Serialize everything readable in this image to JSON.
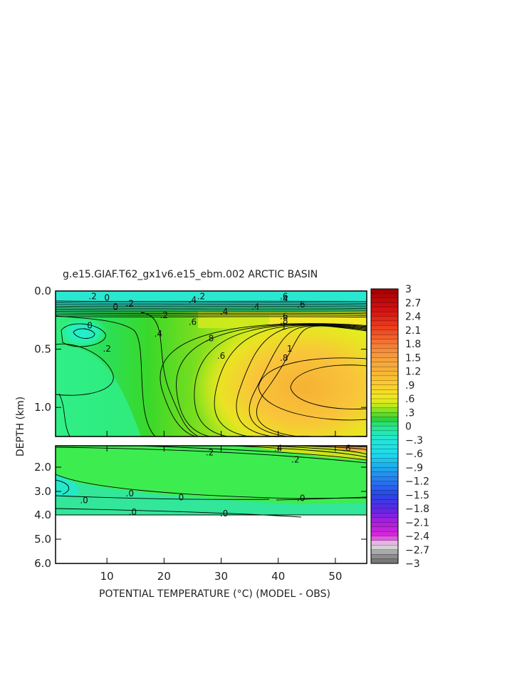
{
  "chart_data": {
    "type": "heatmap",
    "title": "g.e15.GIAF.T62_gx1v6.e15_ebm.002 ARCTIC BASIN",
    "xlabel": "POTENTIAL TEMPERATURE (°C) (MODEL - OBS)",
    "ylabel": "DEPTH (km)",
    "x_ticks": [
      "10",
      "20",
      "30",
      "40",
      "50"
    ],
    "x_tick_values": [
      10,
      20,
      30,
      40,
      50
    ],
    "xlim": [
      1,
      55.5
    ],
    "upper_panel": {
      "ylim": [
        0.0,
        1.25
      ],
      "y_ticks": [
        "0.0",
        "0.5",
        "1.0"
      ],
      "y_tick_values": [
        0.0,
        0.5,
        1.0
      ]
    },
    "lower_panel": {
      "ylim": [
        1.25,
        6.0
      ],
      "y_ticks": [
        "2.0",
        "3.0",
        "4.0",
        "5.0",
        "6.0"
      ],
      "y_tick_values": [
        2.0,
        3.0,
        4.0,
        5.0,
        6.0
      ]
    },
    "colorbar": {
      "ticks": [
        "3",
        "2.7",
        "2.4",
        "2.1",
        "1.8",
        "1.5",
        "1.2",
        ".9",
        ".6",
        ".3",
        "0",
        "-.3",
        "-.6",
        "-.9",
        "-1.2",
        "-1.5",
        "-1.8",
        "-2.1",
        "-2.4",
        "-2.7",
        "-3"
      ],
      "values": [
        3,
        2.7,
        2.4,
        2.1,
        1.8,
        1.5,
        1.2,
        0.9,
        0.6,
        0.3,
        0,
        -0.3,
        -0.6,
        -0.9,
        -1.2,
        -1.5,
        -1.8,
        -2.1,
        -2.4,
        -2.7,
        -3
      ],
      "range": [
        -3,
        3
      ]
    },
    "contour_labels_upper": [
      {
        "text": ".2",
        "x": 7.5,
        "y": 0.05
      },
      {
        "text": "0",
        "x": 10,
        "y": 0.06
      },
      {
        "text": "0",
        "x": 11.5,
        "y": 0.14
      },
      {
        "text": ".2",
        "x": 14,
        "y": 0.11
      },
      {
        "text": ".2",
        "x": 26.5,
        "y": 0.05
      },
      {
        "text": ".4",
        "x": 25,
        "y": 0.08
      },
      {
        "text": ".6",
        "x": 41,
        "y": 0.05
      },
      {
        "text": ".4",
        "x": 41,
        "y": 0.07
      },
      {
        "text": ".6",
        "x": 44,
        "y": 0.12
      },
      {
        "text": ".4",
        "x": 36,
        "y": 0.14
      },
      {
        "text": ".4",
        "x": 30.5,
        "y": 0.18
      },
      {
        "text": ".2",
        "x": 20,
        "y": 0.21
      },
      {
        "text": ".6",
        "x": 41,
        "y": 0.22
      },
      {
        "text": ".8",
        "x": 41,
        "y": 0.26
      },
      {
        "text": "0",
        "x": 7,
        "y": 0.3
      },
      {
        "text": ".6",
        "x": 25,
        "y": 0.27
      },
      {
        "text": "1",
        "x": 41,
        "y": 0.31
      },
      {
        "text": ".4",
        "x": 19,
        "y": 0.37
      },
      {
        "text": ".8",
        "x": 28,
        "y": 0.41
      },
      {
        "text": "1",
        "x": 42,
        "y": 0.5
      },
      {
        "text": ".2",
        "x": 10,
        "y": 0.5
      },
      {
        "text": ".6",
        "x": 30,
        "y": 0.56
      },
      {
        "text": ".8",
        "x": 41,
        "y": 0.58
      }
    ],
    "contour_labels_lower": [
      {
        "text": ".4",
        "x": 40,
        "y": 1.35
      },
      {
        "text": ".6",
        "x": 52,
        "y": 1.35
      },
      {
        "text": ".2",
        "x": 28,
        "y": 1.5
      },
      {
        "text": ".2",
        "x": 43,
        "y": 1.75
      },
      {
        "text": ".0",
        "x": 14,
        "y": 3.1
      },
      {
        "text": "0",
        "x": 23,
        "y": 3.28
      },
      {
        "text": ".0",
        "x": 6,
        "y": 3.4
      },
      {
        "text": ".0",
        "x": 44,
        "y": 3.3
      },
      {
        "text": ".0",
        "x": 14.5,
        "y": 3.9
      },
      {
        "text": ".0",
        "x": 30.5,
        "y": 3.95
      }
    ]
  }
}
